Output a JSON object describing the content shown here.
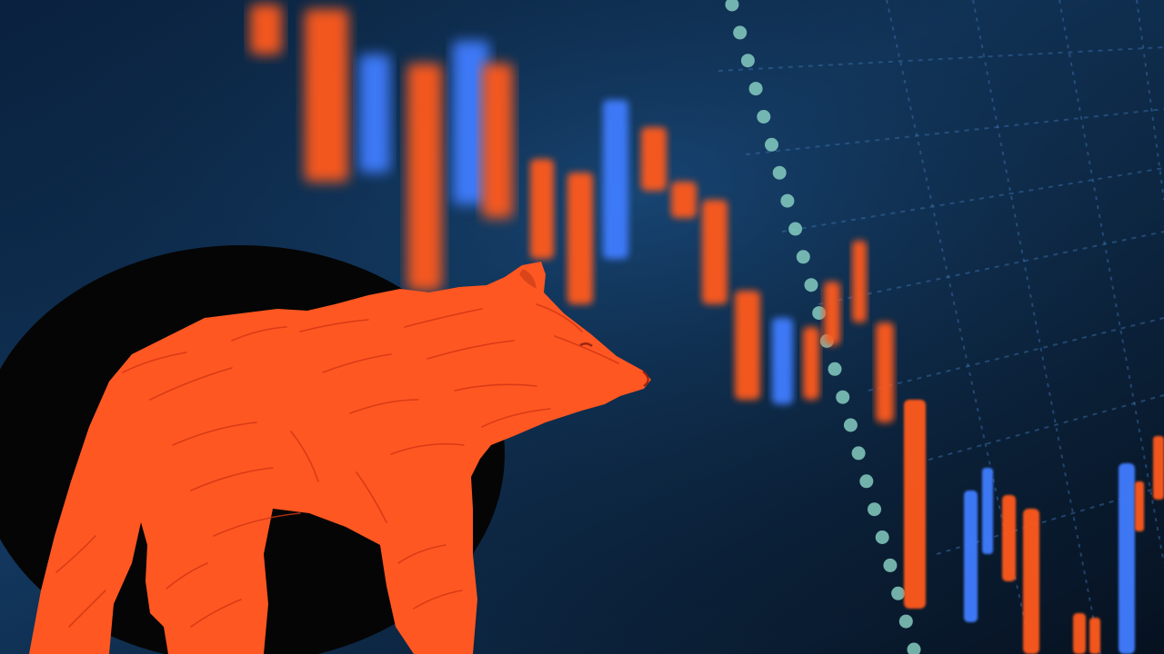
{
  "scene": {
    "subject": "bear",
    "background": "falling-candlestick-chart",
    "colors": {
      "background_dark": "#06152a",
      "background_mid": "#12375e",
      "grid": "#3e76b6",
      "bearish_candle": "#ff5a1f",
      "bullish_candle": "#3f7dff",
      "bear": "#ff5722",
      "bear_line": "#cf3514",
      "circle_backdrop": "#050505",
      "trend_dots": "#8ad2c4"
    }
  }
}
